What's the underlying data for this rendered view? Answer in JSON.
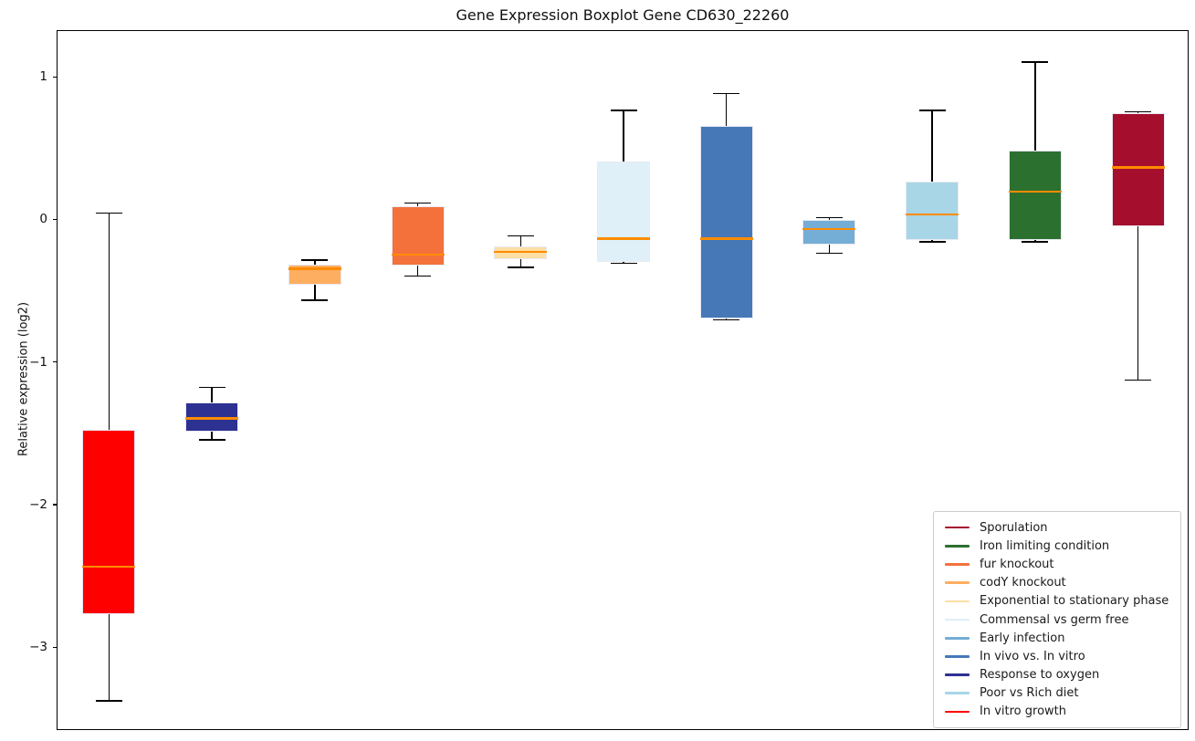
{
  "title": "Gene Expression Boxplot Gene CD630_22260",
  "ylabel": "Relative expression (log2)",
  "chart_data": {
    "type": "boxplot",
    "title": "Gene Expression Boxplot Gene CD630_22260",
    "xlabel": "",
    "ylabel": "Relative expression (log2)",
    "ylim": [
      -3.581,
      1.327
    ],
    "yticks": [
      1,
      0,
      -1,
      -2,
      -3
    ],
    "grid": false,
    "legend_position": "lower right",
    "median_color": "#ff8c00",
    "whisker_color": "#000000",
    "series": [
      {
        "name": "In vitro growth",
        "color": "#ff0000",
        "whislo": -3.37,
        "q1": -2.76,
        "med": -2.43,
        "q3": -1.47,
        "whishi": 0.05
      },
      {
        "name": "Response to oxygen",
        "color": "#2d3192",
        "whislo": -1.54,
        "q1": -1.48,
        "med": -1.39,
        "q3": -1.28,
        "whishi": -1.17
      },
      {
        "name": "codY knockout",
        "color": "#fdae61",
        "whislo": -0.56,
        "q1": -0.45,
        "med": -0.34,
        "q3": -0.31,
        "whishi": -0.28
      },
      {
        "name": "fur knockout",
        "color": "#f4713c",
        "whislo": -0.39,
        "q1": -0.32,
        "med": -0.24,
        "q3": 0.1,
        "whishi": 0.12
      },
      {
        "name": "Exponential to stationary phase",
        "color": "#fcdfa4",
        "whislo": -0.33,
        "q1": -0.27,
        "med": -0.22,
        "q3": -0.18,
        "whishi": -0.11
      },
      {
        "name": "Commensal vs germ free",
        "color": "#dff0f8",
        "whislo": -0.3,
        "q1": -0.29,
        "med": -0.13,
        "q3": 0.41,
        "whishi": 0.77
      },
      {
        "name": "In vivo vs. In vitro",
        "color": "#4678b8",
        "whislo": -0.7,
        "q1": -0.69,
        "med": -0.13,
        "q3": 0.66,
        "whishi": 0.89
      },
      {
        "name": "Early infection",
        "color": "#74add5",
        "whislo": -0.23,
        "q1": -0.17,
        "med": -0.06,
        "q3": 0.0,
        "whishi": 0.02
      },
      {
        "name": "Poor vs Rich diet",
        "color": "#a8d6e6",
        "whislo": -0.15,
        "q1": -0.14,
        "med": 0.04,
        "q3": 0.27,
        "whishi": 0.77
      },
      {
        "name": "Iron limiting condition",
        "color": "#2c7030",
        "whislo": -0.15,
        "q1": -0.14,
        "med": 0.2,
        "q3": 0.49,
        "whishi": 1.11
      },
      {
        "name": "Sporulation",
        "color": "#a50e2d",
        "whislo": -1.12,
        "q1": -0.04,
        "med": 0.37,
        "q3": 0.75,
        "whishi": 0.76
      }
    ],
    "legend_order": [
      "Sporulation",
      "Iron limiting condition",
      "fur knockout",
      "codY knockout",
      "Exponential to stationary phase",
      "Commensal vs germ free",
      "Early infection",
      "In vivo vs. In vitro",
      "Response to oxygen",
      "Poor vs Rich diet",
      "In vitro growth"
    ]
  }
}
